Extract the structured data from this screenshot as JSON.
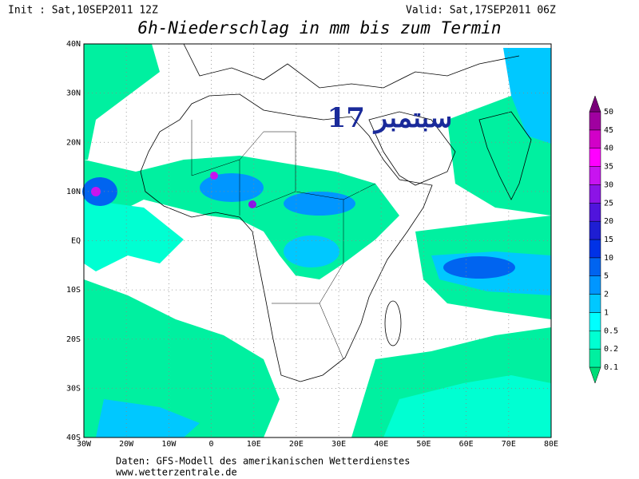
{
  "header": {
    "init": "Init : Sat,10SEP2011 12Z",
    "valid": "Valid: Sat,17SEP2011 06Z",
    "title": "6h-Niederschlag in mm bis zum Termin"
  },
  "overlay": "17 سبتمبر",
  "lat_labels": [
    "40N",
    "30N",
    "20N",
    "10N",
    "EQ",
    "10S",
    "20S",
    "30S",
    "40S"
  ],
  "lon_labels": [
    "30W",
    "20W",
    "10W",
    "0",
    "10E",
    "20E",
    "30E",
    "40E",
    "50E",
    "60E",
    "70E",
    "80E"
  ],
  "legend": {
    "labels": [
      "0.1",
      "0.2",
      "0.5",
      "1",
      "2",
      "5",
      "10",
      "15",
      "20",
      "25",
      "30",
      "35",
      "40",
      "45",
      "50"
    ],
    "colors": [
      "#00dc78",
      "#00f0a0",
      "#00ffd2",
      "#00ffff",
      "#00c8ff",
      "#0096ff",
      "#0064f0",
      "#0032e6",
      "#1e1ed2",
      "#5014dc",
      "#8c14e6",
      "#c814f0",
      "#ff00ff",
      "#d200c8",
      "#a000a0",
      "#780078"
    ]
  },
  "footer": {
    "line1": "Daten: GFS-Modell des amerikanischen Wetterdienstes",
    "line2": "www.wetterzentrale.de"
  }
}
